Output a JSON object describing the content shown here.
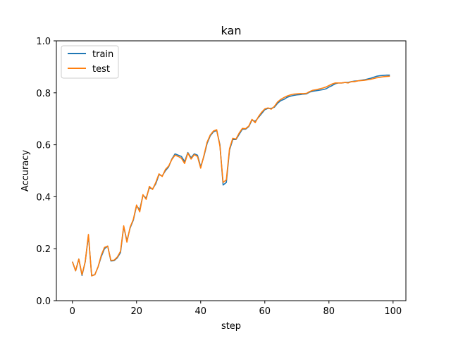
{
  "chart_data": {
    "type": "line",
    "title": "kan",
    "xlabel": "step",
    "ylabel": "Accuracy",
    "xlim": [
      -5,
      104
    ],
    "ylim": [
      0.0,
      1.0
    ],
    "xticks": [
      0,
      20,
      40,
      60,
      80,
      100
    ],
    "yticks": [
      0.0,
      0.2,
      0.4,
      0.6,
      0.8,
      1.0
    ],
    "xtick_labels": [
      "0",
      "20",
      "40",
      "60",
      "80",
      "100"
    ],
    "ytick_labels": [
      "0.0",
      "0.2",
      "0.4",
      "0.6",
      "0.8",
      "1.0"
    ],
    "grid": false,
    "legend_position": "top-left",
    "x": [
      0,
      1,
      2,
      3,
      4,
      5,
      6,
      7,
      8,
      9,
      10,
      11,
      12,
      13,
      14,
      15,
      16,
      17,
      18,
      19,
      20,
      21,
      22,
      23,
      24,
      25,
      26,
      27,
      28,
      29,
      30,
      31,
      32,
      33,
      34,
      35,
      36,
      37,
      38,
      39,
      40,
      41,
      42,
      43,
      44,
      45,
      46,
      47,
      48,
      49,
      50,
      51,
      52,
      53,
      54,
      55,
      56,
      57,
      58,
      59,
      60,
      61,
      62,
      63,
      64,
      65,
      66,
      67,
      68,
      69,
      70,
      71,
      72,
      73,
      74,
      75,
      76,
      77,
      78,
      79,
      80,
      81,
      82,
      83,
      84,
      85,
      86,
      87,
      88,
      89,
      90,
      91,
      92,
      93,
      94,
      95,
      96,
      97,
      98,
      99
    ],
    "series": [
      {
        "name": "train",
        "color": "#1f77b4",
        "values": [
          0.15,
          0.115,
          0.16,
          0.097,
          0.15,
          0.25,
          0.097,
          0.1,
          0.13,
          0.17,
          0.2,
          0.21,
          0.153,
          0.154,
          0.165,
          0.185,
          0.285,
          0.23,
          0.28,
          0.31,
          0.365,
          0.35,
          0.405,
          0.395,
          0.435,
          0.43,
          0.45,
          0.485,
          0.48,
          0.5,
          0.515,
          0.545,
          0.565,
          0.56,
          0.555,
          0.535,
          0.57,
          0.55,
          0.565,
          0.56,
          0.515,
          0.555,
          0.605,
          0.635,
          0.65,
          0.655,
          0.6,
          0.445,
          0.455,
          0.58,
          0.62,
          0.62,
          0.64,
          0.66,
          0.66,
          0.67,
          0.695,
          0.69,
          0.705,
          0.72,
          0.735,
          0.74,
          0.74,
          0.745,
          0.76,
          0.77,
          0.775,
          0.783,
          0.787,
          0.79,
          0.792,
          0.793,
          0.795,
          0.796,
          0.803,
          0.806,
          0.808,
          0.81,
          0.812,
          0.815,
          0.822,
          0.828,
          0.835,
          0.838,
          0.838,
          0.84,
          0.84,
          0.843,
          0.845,
          0.846,
          0.848,
          0.85,
          0.853,
          0.856,
          0.86,
          0.864,
          0.866,
          0.867,
          0.868,
          0.868
        ]
      },
      {
        "name": "test",
        "color": "#ff7f0e",
        "values": [
          0.15,
          0.115,
          0.16,
          0.1,
          0.15,
          0.255,
          0.095,
          0.1,
          0.13,
          0.175,
          0.205,
          0.21,
          0.155,
          0.156,
          0.168,
          0.19,
          0.288,
          0.225,
          0.283,
          0.313,
          0.368,
          0.342,
          0.408,
          0.39,
          0.44,
          0.428,
          0.455,
          0.488,
          0.478,
          0.505,
          0.518,
          0.543,
          0.56,
          0.555,
          0.548,
          0.528,
          0.568,
          0.545,
          0.562,
          0.555,
          0.51,
          0.558,
          0.61,
          0.638,
          0.653,
          0.658,
          0.595,
          0.455,
          0.465,
          0.585,
          0.625,
          0.622,
          0.645,
          0.663,
          0.662,
          0.672,
          0.698,
          0.685,
          0.708,
          0.725,
          0.738,
          0.742,
          0.737,
          0.748,
          0.765,
          0.775,
          0.782,
          0.788,
          0.792,
          0.795,
          0.796,
          0.797,
          0.797,
          0.798,
          0.805,
          0.81,
          0.812,
          0.815,
          0.818,
          0.822,
          0.828,
          0.834,
          0.838,
          0.838,
          0.838,
          0.84,
          0.838,
          0.843,
          0.843,
          0.846,
          0.847,
          0.848,
          0.85,
          0.852,
          0.855,
          0.858,
          0.86,
          0.862,
          0.863,
          0.864
        ]
      }
    ]
  }
}
